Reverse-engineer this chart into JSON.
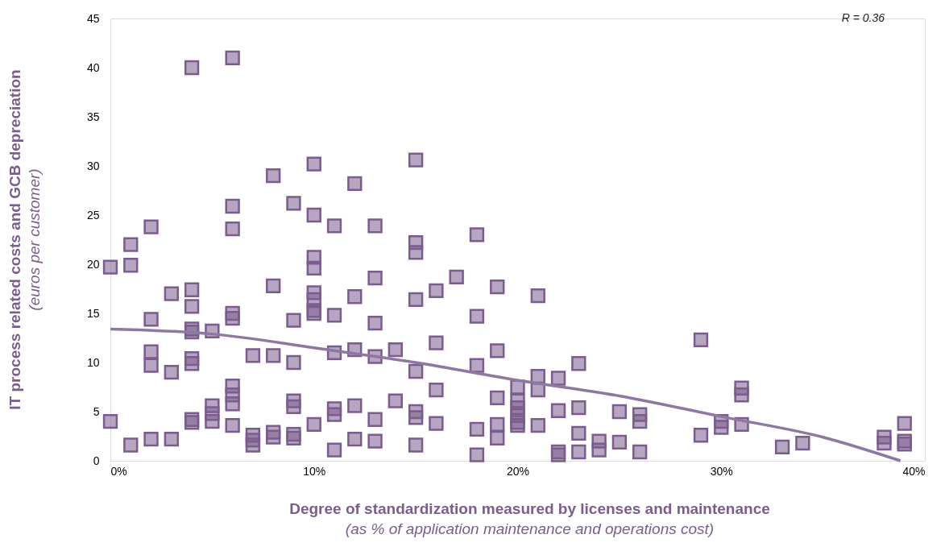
{
  "chart_data": {
    "type": "scatter",
    "xlabel": "Degree of standardization measured by licenses and maintenance\n(as % of application maintenance and operations cost)",
    "ylabel": "IT process related costs and GCB depreciation\n(euros per customer)",
    "annotations": [
      "R = 0.36"
    ],
    "xlim": [
      0,
      40
    ],
    "xticks": [
      {
        "value": 0,
        "label": "0%"
      },
      {
        "value": 10,
        "label": "10%"
      },
      {
        "value": 20,
        "label": "20%"
      },
      {
        "value": 30,
        "label": "30%"
      },
      {
        "value": 40,
        "label": "40%"
      }
    ],
    "ylim": [
      0,
      45
    ],
    "yticks": [
      0,
      5,
      10,
      15,
      20,
      25,
      30,
      35,
      40,
      45
    ],
    "grid": false,
    "series": [
      {
        "color": "#7b5c8e",
        "marker": "square",
        "x": [
          0,
          0,
          1,
          1,
          1,
          2,
          2,
          2,
          2,
          2,
          3,
          3,
          3,
          4,
          4,
          4,
          4,
          4,
          4,
          4,
          4,
          4,
          5,
          5,
          5,
          5,
          6,
          6,
          6,
          6,
          6,
          6,
          6,
          6,
          6,
          7,
          7,
          7,
          7,
          8,
          8,
          8,
          8,
          8,
          9,
          9,
          9,
          9,
          9,
          9,
          9,
          10,
          10,
          10,
          10,
          10,
          10,
          10,
          10,
          10,
          11,
          11,
          11,
          11,
          11,
          11,
          12,
          12,
          12,
          12,
          12,
          13,
          13,
          13,
          13,
          13,
          13,
          14,
          14,
          15,
          15,
          15,
          15,
          15,
          15,
          15,
          15,
          16,
          16,
          16,
          16,
          17,
          18,
          18,
          18,
          18,
          18,
          19,
          19,
          19,
          19,
          19,
          20,
          20,
          20,
          20,
          20,
          20,
          21,
          21,
          21,
          21,
          22,
          22,
          22,
          22,
          23,
          23,
          23,
          23,
          24,
          24,
          25,
          25,
          26,
          26,
          26,
          29,
          29,
          30,
          30,
          31,
          31,
          31,
          33,
          34,
          38,
          38,
          39,
          39,
          39
        ],
        "values": [
          19.7,
          4.0,
          22,
          19.9,
          1.6,
          23.8,
          14.4,
          11.1,
          9.7,
          2.2,
          17,
          9,
          2.2,
          40,
          17.4,
          15.7,
          13.4,
          13.1,
          10.4,
          9.9,
          4.2,
          3.9,
          13.2,
          5.6,
          4.8,
          4.0,
          41,
          25.9,
          23.6,
          15,
          14.5,
          7.6,
          6.7,
          5.8,
          3.6,
          10.7,
          2.6,
          2.1,
          1.6,
          29,
          17.8,
          10.7,
          2.9,
          2.4,
          26.2,
          14.3,
          10,
          6.1,
          5.5,
          2.7,
          2.3,
          30.2,
          25,
          20.7,
          19.6,
          17.1,
          16.4,
          15.3,
          15,
          3.7,
          23.9,
          14.8,
          11,
          5.3,
          4.7,
          1.1,
          28.2,
          16.7,
          11.3,
          5.6,
          2.2,
          23.9,
          18.6,
          14,
          10.6,
          4.2,
          2.0,
          11.3,
          6.1,
          30.6,
          22.2,
          21.2,
          16.4,
          9.1,
          5.0,
          4.4,
          1.6,
          17.3,
          12,
          7.2,
          3.8,
          18.7,
          23,
          14.7,
          9.7,
          3.2,
          0.6,
          17.7,
          11.2,
          6.4,
          3.7,
          2.3,
          7.5,
          6.1,
          5.4,
          4.6,
          3.9,
          3.6,
          16.8,
          8.6,
          7.2,
          3.6,
          8.4,
          5.1,
          0.9,
          0.6,
          9.9,
          5.4,
          2.8,
          0.9,
          2.0,
          1.1,
          5.0,
          1.9,
          4.7,
          4.0,
          0.9,
          12.3,
          2.6,
          4.0,
          3.4,
          7.4,
          6.7,
          3.7,
          1.4,
          1.8,
          2.4,
          1.8,
          3.8,
          2.0,
          1.7
        ]
      },
      {
        "type": "line",
        "color": "#8f77a3",
        "x": [
          0,
          5,
          10,
          15,
          20,
          25,
          30,
          35,
          38.8
        ],
        "values": [
          13.4,
          12.9,
          11.5,
          10.0,
          8.2,
          6.6,
          4.5,
          2.4,
          0
        ]
      }
    ]
  }
}
